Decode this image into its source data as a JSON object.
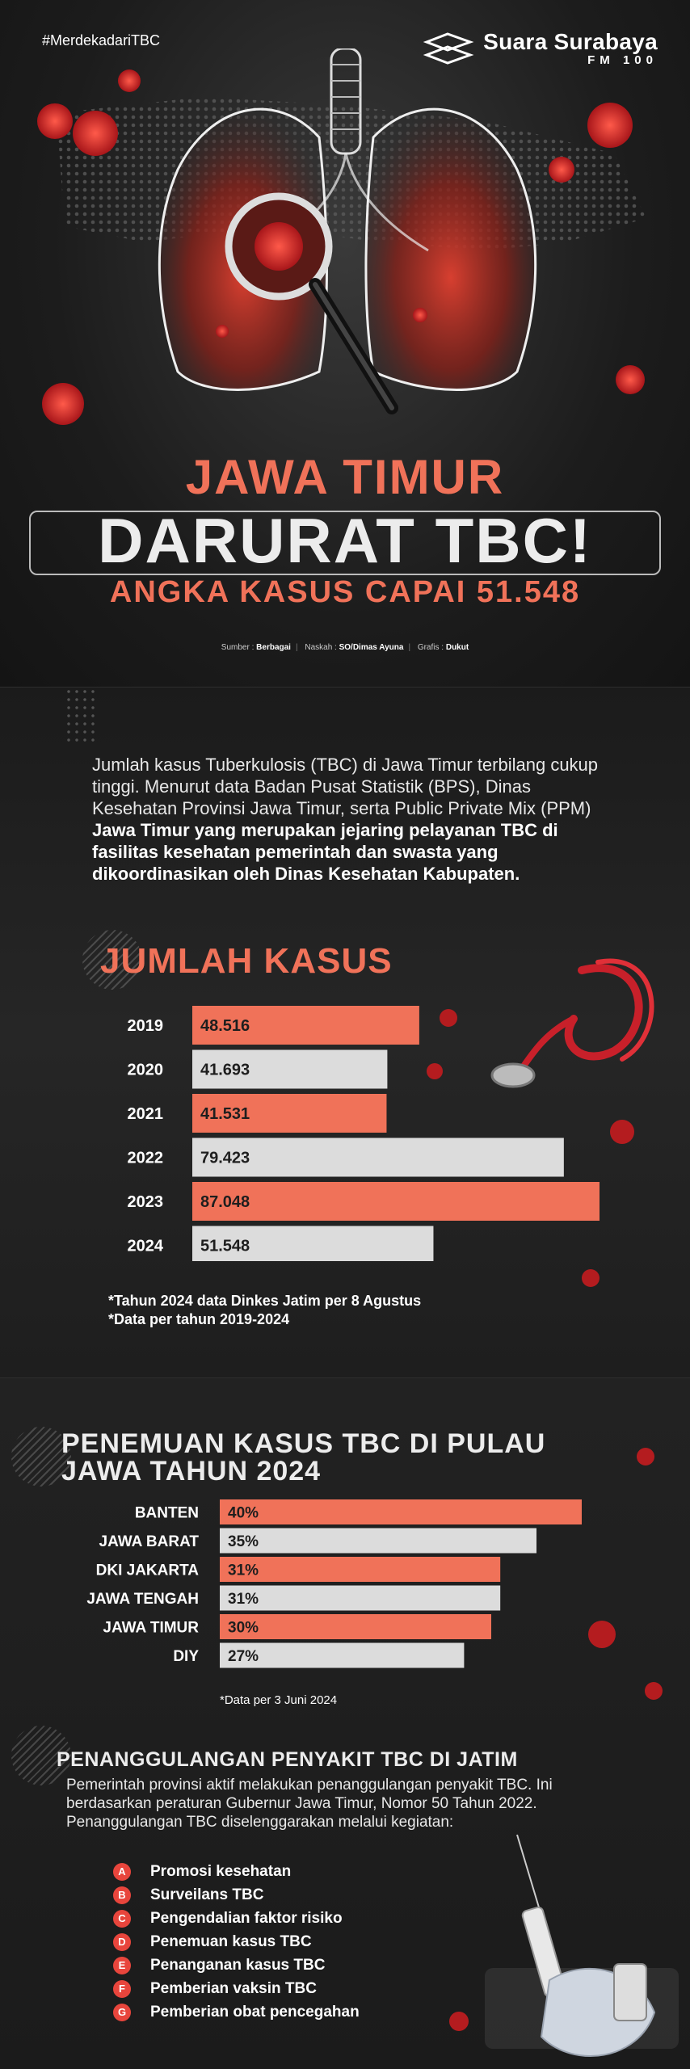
{
  "header": {
    "hashtag": "#MerdekadariTBC",
    "logo_name": "Suara Surabaya",
    "logo_sub": "FM 100"
  },
  "headline": {
    "line1": "JAWA TIMUR",
    "line2": "DARURAT TBC!",
    "line3": "ANGKA KASUS CAPAI 51.548"
  },
  "credits": {
    "sumber_label": "Sumber :",
    "sumber": "Berbagai",
    "naskah_label": "Naskah :",
    "naskah": "SO/Dimas Ayuna",
    "grafis_label": "Grafis :",
    "grafis": "Dukut"
  },
  "intro": {
    "text": "Jumlah kasus Tuberkulosis (TBC) di Jawa Timur terbilang cukup tinggi. Menurut data Badan Pusat Statistik (BPS), Dinas Kesehatan Provinsi Jawa Timur, serta Public Private Mix (PPM) ",
    "bold": "Jawa Timur yang merupakan jejaring pelayanan TBC di fasilitas kesehatan pemerintah dan swasta yang dikoordinasikan oleh Dinas Kesehatan Kabupaten."
  },
  "notes1": {
    "line1": "*Tahun 2024 data Dinkes Jatim per 8 Agustus",
    "line2": "*Data per tahun 2019-2024"
  },
  "notes2": {
    "line1": "*Data per 3 Juni 2024"
  },
  "section3": {
    "title": "PENANGGULANGAN PENYAKIT TBC DI JATIM",
    "text": "Pemerintah provinsi aktif melakukan penanggulangan penyakit TBC. Ini berdasarkan peraturan Gubernur Jawa Timur, Nomor 50 Tahun 2022. Penanggulangan TBC diselenggarakan melalui kegiatan:",
    "items": [
      {
        "letter": "A",
        "label": "Promosi kesehatan"
      },
      {
        "letter": "B",
        "label": "Surveilans TBC"
      },
      {
        "letter": "C",
        "label": "Pengendalian faktor risiko"
      },
      {
        "letter": "D",
        "label": "Penemuan kasus TBC"
      },
      {
        "letter": "E",
        "label": "Penanganan kasus TBC"
      },
      {
        "letter": "F",
        "label": "Pemberian vaksin TBC"
      },
      {
        "letter": "G",
        "label": "Pemberian obat pencegahan"
      }
    ]
  },
  "colors": {
    "accent": "#f07259",
    "neutral": "#dcdcdc",
    "bullet": "#e8453c"
  },
  "chart_data": [
    {
      "type": "bar",
      "orientation": "horizontal",
      "title": "JUMLAH KASUS",
      "categories": [
        "2019",
        "2020",
        "2021",
        "2022",
        "2023",
        "2024"
      ],
      "values": [
        48516,
        41693,
        41531,
        79423,
        87048,
        51548
      ],
      "value_labels": [
        "48.516",
        "41.693",
        "41.531",
        "79.423",
        "87.048",
        "51.548"
      ],
      "bar_colors": [
        "#f07259",
        "#dcdcdc",
        "#f07259",
        "#dcdcdc",
        "#f07259",
        "#dcdcdc"
      ],
      "xlim": [
        0,
        87048
      ]
    },
    {
      "type": "bar",
      "orientation": "horizontal",
      "title": "PENEMUAN KASUS TBC DI PULAU JAWA TAHUN 2024",
      "categories": [
        "BANTEN",
        "JAWA BARAT",
        "DKI JAKARTA",
        "JAWA TENGAH",
        "JAWA TIMUR",
        "DIY"
      ],
      "values": [
        40,
        35,
        31,
        31,
        30,
        27
      ],
      "value_labels": [
        "40%",
        "35%",
        "31%",
        "31%",
        "30%",
        "27%"
      ],
      "bar_colors": [
        "#f07259",
        "#dcdcdc",
        "#f07259",
        "#dcdcdc",
        "#f07259",
        "#dcdcdc"
      ],
      "xlim": [
        0,
        40
      ]
    }
  ]
}
